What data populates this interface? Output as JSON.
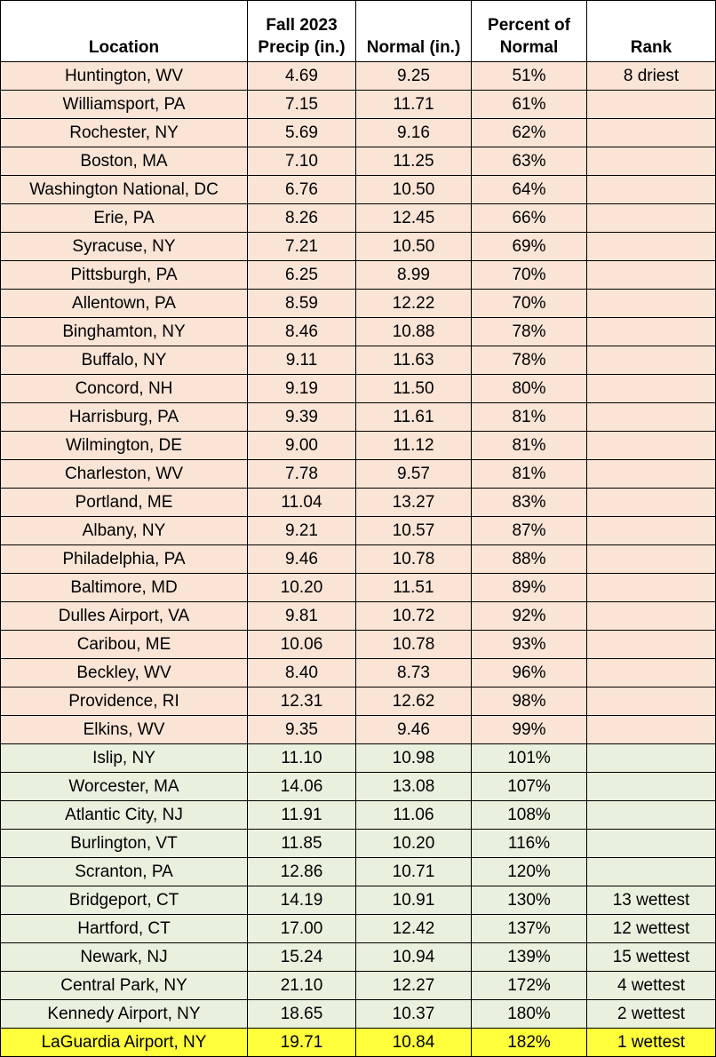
{
  "table": {
    "header": [
      "Location",
      "Fall 2023 Precip (in.)",
      "Normal (in.)",
      "Percent of Normal",
      "Rank"
    ],
    "rows": [
      [
        "Huntington, WV",
        "4.69",
        "9.25",
        "51%",
        "8 driest"
      ],
      [
        "Williamsport, PA",
        "7.15",
        "11.71",
        "61%",
        null
      ],
      [
        "Rochester, NY",
        "5.69",
        "9.16",
        "62%",
        null
      ],
      [
        "Boston, MA",
        "7.10",
        "11.25",
        "63%",
        null
      ],
      [
        "Washington National, DC",
        "6.76",
        "10.50",
        "64%",
        null
      ],
      [
        "Erie, PA",
        "8.26",
        "12.45",
        "66%",
        null
      ],
      [
        "Syracuse, NY",
        "7.21",
        "10.50",
        "69%",
        null
      ],
      [
        "Pittsburgh, PA",
        "6.25",
        "8.99",
        "70%",
        null
      ],
      [
        "Allentown, PA",
        "8.59",
        "12.22",
        "70%",
        null
      ],
      [
        "Binghamton, NY",
        "8.46",
        "10.88",
        "78%",
        null
      ],
      [
        "Buffalo, NY",
        "9.11",
        "11.63",
        "78%",
        null
      ],
      [
        "Concord, NH",
        "9.19",
        "11.50",
        "80%",
        null
      ],
      [
        "Harrisburg, PA",
        "9.39",
        "11.61",
        "81%",
        null
      ],
      [
        "Wilmington, DE",
        "9.00",
        "11.12",
        "81%",
        null
      ],
      [
        "Charleston, WV",
        "7.78",
        "9.57",
        "81%",
        null
      ],
      [
        "Portland, ME",
        "11.04",
        "13.27",
        "83%",
        null
      ],
      [
        "Albany, NY",
        "9.21",
        "10.57",
        "87%",
        null
      ],
      [
        "Philadelphia, PA",
        "9.46",
        "10.78",
        "88%",
        null
      ],
      [
        "Baltimore, MD",
        "10.20",
        "11.51",
        "89%",
        null
      ],
      [
        "Dulles Airport, VA",
        "9.81",
        "10.72",
        "92%",
        null
      ],
      [
        "Caribou, ME",
        "10.06",
        "10.78",
        "93%",
        null
      ],
      [
        "Beckley, WV",
        "8.40",
        "8.73",
        "96%",
        null
      ],
      [
        "Providence, RI",
        "12.31",
        "12.62",
        "98%",
        null
      ],
      [
        "Elkins, WV",
        "9.35",
        "9.46",
        "99%",
        null
      ],
      [
        "Islip, NY",
        "11.10",
        "10.98",
        "101%",
        null
      ],
      [
        "Worcester, MA",
        "14.06",
        "13.08",
        "107%",
        null
      ],
      [
        "Atlantic City, NJ",
        "11.91",
        "11.06",
        "108%",
        null
      ],
      [
        "Burlington, VT",
        "11.85",
        "10.20",
        "116%",
        null
      ],
      [
        "Scranton, PA",
        "12.86",
        "10.71",
        "120%",
        null
      ],
      [
        "Bridgeport, CT",
        "14.19",
        "10.91",
        "130%",
        "13 wettest"
      ],
      [
        "Hartford, CT",
        "17.00",
        "12.42",
        "137%",
        "12 wettest"
      ],
      [
        "Newark, NJ",
        "15.24",
        "10.94",
        "139%",
        "15 wettest"
      ],
      [
        "Central Park, NY",
        "21.10",
        "12.27",
        "172%",
        "4 wettest"
      ],
      [
        "Kennedy Airport, NY",
        "18.65",
        "10.37",
        "180%",
        "2 wettest"
      ],
      [
        "LaGuardia Airport, NY",
        "19.71",
        "10.84",
        "182%",
        "1 wettest"
      ]
    ]
  }
}
